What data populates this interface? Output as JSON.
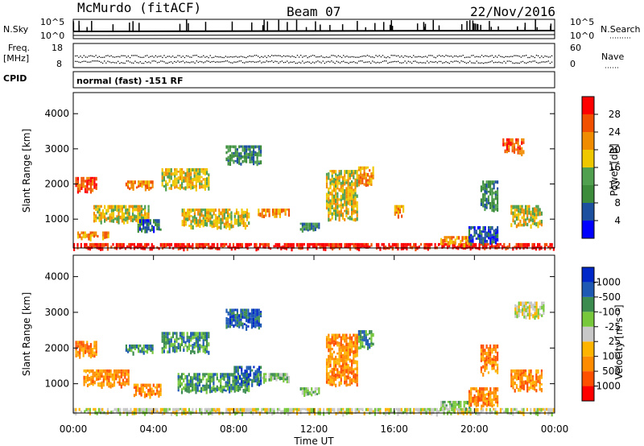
{
  "header": {
    "station": "McMurdo (fitACF)",
    "beam": "Beam 07",
    "date": "22/Nov/2016"
  },
  "status_panels": {
    "nsky": {
      "label": "N.Sky",
      "ticks": [
        "10^5",
        "10^0"
      ]
    },
    "nsearch": {
      "label": "N.Search",
      "ticks": [
        "10^5",
        "10^0"
      ]
    },
    "freq": {
      "label_line1": "Freq.",
      "label_line2": "[MHz]",
      "ticks": [
        "18",
        "8"
      ]
    },
    "nave": {
      "label": "Nave",
      "ticks": [
        "60",
        "0"
      ]
    },
    "cpid": {
      "label": "CPID",
      "program": "normal (fast) -151 RF"
    }
  },
  "colors": {
    "power": [
      "#0000ff",
      "#1e50a0",
      "#3c8c3c",
      "#50a050",
      "#f0c800",
      "#f08c00",
      "#f05000",
      "#ff0000"
    ],
    "velocity": [
      "#ff0000",
      "#ff5000",
      "#ff8c00",
      "#ffb400",
      "#c8c8c8",
      "#78c83c",
      "#3c8c50",
      "#1e5ab4",
      "#0028c8"
    ]
  },
  "chart_data": [
    {
      "type": "heatmap",
      "quantity": "Power",
      "ylabel": "Slant Range [km]",
      "xlabel": "",
      "ylim": [
        180,
        4600
      ],
      "xlim": [
        0,
        24
      ],
      "yticks": [
        "1000",
        "2000",
        "3000",
        "4000"
      ],
      "colorbar": {
        "label": "Power [dB]",
        "range": [
          0,
          32
        ],
        "ticks": [
          "4",
          "8",
          "12",
          "16",
          "20",
          "24",
          "28"
        ]
      },
      "echo_regions": [
        {
          "t": [
            0.0,
            24.0
          ],
          "r": [
            200,
            320
          ],
          "level": 7
        },
        {
          "t": [
            0.1,
            1.2
          ],
          "r": [
            1800,
            2200
          ],
          "level": 6
        },
        {
          "t": [
            0.2,
            1.8
          ],
          "r": [
            480,
            650
          ],
          "level": 5
        },
        {
          "t": [
            1.0,
            3.8
          ],
          "r": [
            950,
            1400
          ],
          "level": 4
        },
        {
          "t": [
            2.6,
            4.0
          ],
          "r": [
            1900,
            2100
          ],
          "level": 5
        },
        {
          "t": [
            3.2,
            4.4
          ],
          "r": [
            700,
            1000
          ],
          "level": 1
        },
        {
          "t": [
            4.4,
            6.8
          ],
          "r": [
            1900,
            2450
          ],
          "level": 4
        },
        {
          "t": [
            5.4,
            8.8
          ],
          "r": [
            800,
            1300
          ],
          "level": 4
        },
        {
          "t": [
            7.6,
            9.4
          ],
          "r": [
            2600,
            3100
          ],
          "level": 2
        },
        {
          "t": [
            9.2,
            10.8
          ],
          "r": [
            1100,
            1300
          ],
          "level": 5
        },
        {
          "t": [
            11.3,
            12.3
          ],
          "r": [
            700,
            900
          ],
          "level": 2
        },
        {
          "t": [
            12.6,
            14.2
          ],
          "r": [
            1000,
            2400
          ],
          "level": 4
        },
        {
          "t": [
            14.2,
            15.0
          ],
          "r": [
            2000,
            2500
          ],
          "level": 5
        },
        {
          "t": [
            16.0,
            16.5
          ],
          "r": [
            1100,
            1400
          ],
          "level": 5
        },
        {
          "t": [
            18.3,
            19.8
          ],
          "r": [
            300,
            520
          ],
          "level": 5
        },
        {
          "t": [
            19.7,
            21.2
          ],
          "r": [
            340,
            800
          ],
          "level": 1
        },
        {
          "t": [
            20.3,
            21.2
          ],
          "r": [
            1300,
            2100
          ],
          "level": 2
        },
        {
          "t": [
            21.8,
            23.4
          ],
          "r": [
            850,
            1400
          ],
          "level": 4
        },
        {
          "t": [
            21.4,
            22.5
          ],
          "r": [
            2900,
            3300
          ],
          "level": 6
        }
      ]
    },
    {
      "type": "heatmap",
      "quantity": "Velocity",
      "ylabel": "Slant Range [km]",
      "xlabel": "Time UT",
      "ylim": [
        180,
        4600
      ],
      "xlim": [
        0,
        24
      ],
      "yticks": [
        "1000",
        "2000",
        "3000",
        "4000"
      ],
      "xticks": [
        "00:00",
        "04:00",
        "08:00",
        "12:00",
        "16:00",
        "20:00",
        "00:00"
      ],
      "colorbar": {
        "label": "Velocity [m s⁻¹]",
        "ticks": [
          "1000",
          "500",
          "100",
          "25",
          "-25",
          "-100",
          "-500",
          "-1000"
        ]
      },
      "echo_regions": [
        {
          "t": [
            0.0,
            24.0
          ],
          "r": [
            200,
            320
          ],
          "level": 4
        },
        {
          "t": [
            0.1,
            1.2
          ],
          "r": [
            1800,
            2200
          ],
          "level": 2
        },
        {
          "t": [
            0.5,
            2.8
          ],
          "r": [
            950,
            1400
          ],
          "level": 2
        },
        {
          "t": [
            2.6,
            4.0
          ],
          "r": [
            1900,
            2100
          ],
          "level": 6
        },
        {
          "t": [
            3.0,
            4.4
          ],
          "r": [
            700,
            1000
          ],
          "level": 2
        },
        {
          "t": [
            4.4,
            6.8
          ],
          "r": [
            1900,
            2450
          ],
          "level": 6
        },
        {
          "t": [
            5.2,
            8.8
          ],
          "r": [
            800,
            1300
          ],
          "level": 6
        },
        {
          "t": [
            7.6,
            9.4
          ],
          "r": [
            2600,
            3100
          ],
          "level": 7
        },
        {
          "t": [
            8.0,
            9.4
          ],
          "r": [
            1000,
            1500
          ],
          "level": 7
        },
        {
          "t": [
            9.2,
            10.8
          ],
          "r": [
            1100,
            1300
          ],
          "level": 5
        },
        {
          "t": [
            11.3,
            12.3
          ],
          "r": [
            700,
            900
          ],
          "level": 5
        },
        {
          "t": [
            12.6,
            14.2
          ],
          "r": [
            1000,
            2400
          ],
          "level": 2
        },
        {
          "t": [
            14.2,
            15.0
          ],
          "r": [
            2000,
            2500
          ],
          "level": 6
        },
        {
          "t": [
            18.3,
            19.8
          ],
          "r": [
            300,
            520
          ],
          "level": 5
        },
        {
          "t": [
            19.7,
            21.2
          ],
          "r": [
            400,
            900
          ],
          "level": 2
        },
        {
          "t": [
            20.3,
            21.2
          ],
          "r": [
            1300,
            2100
          ],
          "level": 2
        },
        {
          "t": [
            21.8,
            23.4
          ],
          "r": [
            850,
            1400
          ],
          "level": 2
        },
        {
          "t": [
            22.0,
            23.5
          ],
          "r": [
            2900,
            3300
          ],
          "level": 4
        }
      ]
    }
  ]
}
